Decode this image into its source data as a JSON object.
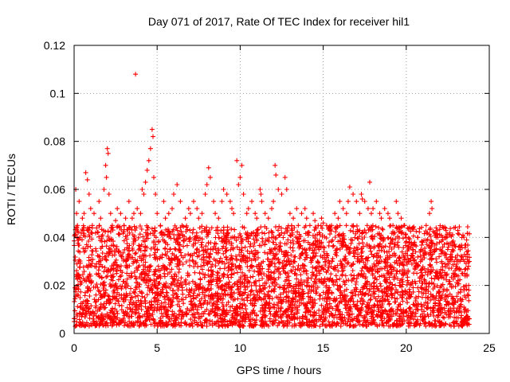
{
  "chart_data": {
    "type": "scatter",
    "title": "Day 071 of 2017, Rate Of TEC Index for receiver hil1",
    "xlabel": "GPS time / hours",
    "ylabel": "ROTI / TECUs",
    "xlim": [
      0,
      25
    ],
    "ylim": [
      0,
      0.12
    ],
    "xticks": [
      0,
      5,
      10,
      15,
      20,
      25
    ],
    "xtick_labels": [
      "0",
      "5",
      "10",
      "15",
      "20",
      "25"
    ],
    "yticks": [
      0,
      0.02,
      0.04,
      0.06,
      0.08,
      0.1,
      0.12
    ],
    "ytick_labels": [
      "0",
      "0.02",
      "0.04",
      "0.06",
      "0.08",
      "0.1",
      "0.12"
    ],
    "grid": true,
    "marker": "+",
    "color": "#ff0000",
    "series": [
      {
        "name": "ROTI",
        "x": [
          3.7,
          4.7,
          4.75,
          4.6,
          2.0,
          2.05,
          1.9,
          1.95,
          0.7,
          0.8,
          4.5,
          4.4,
          4.2,
          9.8,
          10.1,
          8.1,
          12.1,
          12.15,
          11.2,
          11.25,
          12.7,
          17.3,
          17.35,
          17.8,
          16.6,
          21.5,
          21.55,
          21.8,
          23.7,
          23.8,
          0.1,
          0.15,
          0.2,
          0.3,
          0.35,
          0.5,
          0.6,
          0.9,
          1.0,
          1.1,
          1.2,
          1.4,
          1.5,
          1.6,
          1.8,
          2.1,
          2.2,
          2.3,
          2.5,
          2.6,
          2.8,
          3.0,
          3.1,
          3.3,
          3.5,
          3.6,
          3.8,
          4.0,
          4.1,
          4.3,
          4.8,
          4.9,
          5.0,
          5.2,
          5.4,
          5.5,
          5.7,
          5.9,
          6.0,
          6.2,
          6.4,
          6.5,
          6.7,
          6.9,
          7.0,
          7.2,
          7.4,
          7.5,
          7.7,
          7.9,
          8.0,
          8.2,
          8.4,
          8.5,
          8.7,
          8.9,
          9.0,
          9.2,
          9.4,
          9.5,
          9.6,
          9.9,
          10.0,
          10.2,
          10.4,
          10.5,
          10.7,
          10.9,
          11.0,
          11.3,
          11.5,
          11.7,
          11.9,
          12.0,
          12.3,
          12.5,
          12.8,
          13.0,
          13.2,
          13.4,
          13.5,
          13.7,
          13.9,
          14.0,
          14.2,
          14.4,
          14.5,
          14.7,
          14.9,
          15.0,
          15.2,
          15.4,
          15.5,
          15.7,
          15.9,
          16.0,
          16.2,
          16.4,
          16.5,
          16.8,
          17.0,
          17.2,
          17.5,
          17.7,
          17.9,
          18.0,
          18.2,
          18.4,
          18.5,
          18.7,
          18.9,
          19.0,
          19.2,
          19.4,
          19.5,
          19.7,
          19.9,
          20.0,
          20.2,
          20.4,
          20.5,
          20.7,
          20.9,
          21.0,
          21.2,
          21.4,
          21.7,
          21.9,
          22.0,
          22.2,
          22.4,
          22.5,
          22.7,
          22.9,
          23.0,
          23.2,
          23.4,
          23.5,
          23.6,
          23.75
        ],
        "y": [
          0.108,
          0.085,
          0.082,
          0.077,
          0.077,
          0.075,
          0.07,
          0.065,
          0.067,
          0.064,
          0.072,
          0.068,
          0.058,
          0.072,
          0.07,
          0.069,
          0.07,
          0.066,
          0.06,
          0.058,
          0.065,
          0.058,
          0.056,
          0.063,
          0.061,
          0.055,
          0.052,
          0.044,
          0.033,
          0.03,
          0.06,
          0.05,
          0.045,
          0.055,
          0.04,
          0.048,
          0.05,
          0.058,
          0.052,
          0.045,
          0.05,
          0.042,
          0.055,
          0.048,
          0.06,
          0.058,
          0.05,
          0.045,
          0.047,
          0.052,
          0.05,
          0.045,
          0.048,
          0.055,
          0.048,
          0.05,
          0.052,
          0.05,
          0.06,
          0.063,
          0.065,
          0.058,
          0.05,
          0.045,
          0.055,
          0.048,
          0.05,
          0.052,
          0.058,
          0.062,
          0.055,
          0.045,
          0.048,
          0.052,
          0.05,
          0.055,
          0.052,
          0.048,
          0.05,
          0.058,
          0.062,
          0.065,
          0.055,
          0.05,
          0.048,
          0.055,
          0.06,
          0.058,
          0.055,
          0.052,
          0.05,
          0.062,
          0.065,
          0.058,
          0.05,
          0.052,
          0.055,
          0.05,
          0.048,
          0.055,
          0.05,
          0.048,
          0.052,
          0.055,
          0.06,
          0.058,
          0.06,
          0.05,
          0.048,
          0.052,
          0.045,
          0.05,
          0.052,
          0.048,
          0.045,
          0.05,
          0.047,
          0.045,
          0.048,
          0.046,
          0.045,
          0.043,
          0.045,
          0.05,
          0.048,
          0.055,
          0.052,
          0.05,
          0.055,
          0.058,
          0.055,
          0.05,
          0.055,
          0.052,
          0.05,
          0.052,
          0.055,
          0.05,
          0.048,
          0.052,
          0.05,
          0.048,
          0.045,
          0.055,
          0.05,
          0.048,
          0.045,
          0.04,
          0.038,
          0.035,
          0.038,
          0.04,
          0.035,
          0.038,
          0.045,
          0.05,
          0.042,
          0.04,
          0.038,
          0.036,
          0.033,
          0.035,
          0.032,
          0.03,
          0.028,
          0.027,
          0.025,
          0.03,
          0.032,
          0.028
        ]
      }
    ],
    "dense_band": {
      "description_values": "bulk of points between 0.003 and 0.045 across 0-23.8 h",
      "x_range": [
        0,
        23.8
      ],
      "y_range": [
        0.003,
        0.045
      ]
    }
  }
}
